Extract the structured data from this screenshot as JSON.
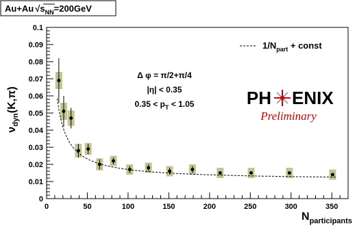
{
  "chart_data": {
    "type": "scatter",
    "system_label": "Au+Au√s_NN=200GeV",
    "system_label_parts": {
      "prefix": "Au+Au",
      "s": "s",
      "sub": "NN",
      "suffix": "=200GeV"
    },
    "ylabel": {
      "main": "ν",
      "sub": "dyn",
      "rest": "(K,π)"
    },
    "xlabel": {
      "main": "N",
      "sub": "participants"
    },
    "xlim": [
      0,
      370
    ],
    "ylim": [
      0,
      0.1
    ],
    "x_ticks": [
      0,
      50,
      100,
      150,
      200,
      250,
      300,
      350
    ],
    "y_ticks": [
      0,
      0.01,
      0.02,
      0.03,
      0.04,
      0.05,
      0.06,
      0.07,
      0.08,
      0.09,
      0.1
    ],
    "x_tick_labels": [
      "0",
      "50",
      "100",
      "150",
      "200",
      "250",
      "300",
      "350"
    ],
    "y_tick_labels": [
      "0",
      "0.01",
      "0.02",
      "0.03",
      "0.04",
      "0.05",
      "0.06",
      "0.07",
      "0.08",
      "0.09",
      "0.1"
    ],
    "grid": false,
    "legend": {
      "position": "top-right",
      "line_style": "dashed",
      "label_parts": {
        "a": "1/N",
        "sub": "part",
        "b": " + const"
      }
    },
    "cuts": [
      {
        "a": "Δ φ = π/2+π/4",
        "sub": "",
        "b": ""
      },
      {
        "a": "|η| < 0.35",
        "sub": "",
        "b": ""
      },
      {
        "a": "0.35 < p",
        "sub": "T",
        "b": " < 1.05"
      }
    ],
    "logo": {
      "left": "PH",
      "right": "ENIX",
      "subtitle": "Preliminary"
    },
    "colors": {
      "syst_box": "#c4c493",
      "marker": "#000000",
      "fit_line": "#000000",
      "logo_red": "#cc0000"
    },
    "series": [
      {
        "x": [
          15,
          21,
          30,
          39,
          51,
          65,
          82,
          102,
          125,
          151,
          179,
          213,
          251,
          298,
          351
        ],
        "y": [
          0.069,
          0.051,
          0.047,
          0.028,
          0.029,
          0.02,
          0.022,
          0.017,
          0.018,
          0.016,
          0.017,
          0.015,
          0.015,
          0.015,
          0.014
        ],
        "stat_err": [
          0.013,
          0.009,
          0.006,
          0.004,
          0.003,
          0.003,
          0.002,
          0.002,
          0.002,
          0.002,
          0.002,
          0.001,
          0.001,
          0.001,
          0.001
        ],
        "syst_err": [
          0.005,
          0.005,
          0.0045,
          0.004,
          0.0035,
          0.0035,
          0.003,
          0.003,
          0.003,
          0.003,
          0.003,
          0.003,
          0.003,
          0.003,
          0.003
        ]
      }
    ],
    "fit": {
      "form": "a/x + b",
      "a": 0.62,
      "b": 0.0108,
      "x_range": [
        13,
        355
      ]
    }
  }
}
